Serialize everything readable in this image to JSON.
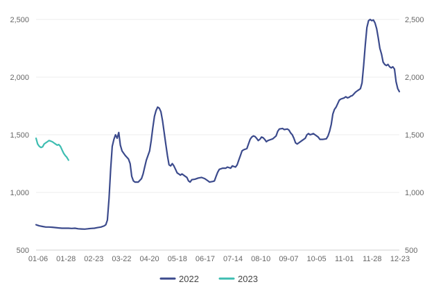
{
  "chart_data": {
    "type": "line",
    "title": "",
    "xlabel": "",
    "ylabel": "",
    "x_tick_labels": [
      "01-06",
      "01-28",
      "02-23",
      "03-22",
      "04-20",
      "05-18",
      "06-17",
      "07-14",
      "08-10",
      "09-07",
      "10-05",
      "11-01",
      "11-28",
      "12-23"
    ],
    "y_ticks": [
      500,
      1000,
      1500,
      2000,
      2500
    ],
    "y_tick_labels": [
      "500",
      "1,000",
      "1,500",
      "2,000",
      "2,500"
    ],
    "ylim": [
      500,
      2500
    ],
    "grid": true,
    "legend_position": "bottom",
    "series": [
      {
        "name": "2022",
        "color": "#3b4a8c",
        "points": [
          [
            0,
            720
          ],
          [
            1,
            715
          ],
          [
            2,
            710
          ],
          [
            4,
            705
          ],
          [
            6,
            700
          ],
          [
            8,
            700
          ],
          [
            10,
            698
          ],
          [
            12,
            695
          ],
          [
            14,
            692
          ],
          [
            16,
            690
          ],
          [
            18,
            690
          ],
          [
            20,
            690
          ],
          [
            22,
            688
          ],
          [
            24,
            690
          ],
          [
            26,
            685
          ],
          [
            28,
            683
          ],
          [
            30,
            682
          ],
          [
            32,
            685
          ],
          [
            34,
            688
          ],
          [
            36,
            690
          ],
          [
            38,
            695
          ],
          [
            40,
            700
          ],
          [
            42,
            710
          ],
          [
            43,
            720
          ],
          [
            44,
            760
          ],
          [
            45,
            950
          ],
          [
            46,
            1200
          ],
          [
            47,
            1400
          ],
          [
            48,
            1460
          ],
          [
            49,
            1500
          ],
          [
            50,
            1470
          ],
          [
            51,
            1520
          ],
          [
            52,
            1410
          ],
          [
            53,
            1360
          ],
          [
            55,
            1320
          ],
          [
            57,
            1290
          ],
          [
            58,
            1250
          ],
          [
            59,
            1140
          ],
          [
            60,
            1100
          ],
          [
            61,
            1090
          ],
          [
            63,
            1090
          ],
          [
            65,
            1120
          ],
          [
            66,
            1160
          ],
          [
            67,
            1220
          ],
          [
            68,
            1280
          ],
          [
            70,
            1360
          ],
          [
            71,
            1450
          ],
          [
            72,
            1560
          ],
          [
            73,
            1660
          ],
          [
            74,
            1710
          ],
          [
            75,
            1740
          ],
          [
            76,
            1730
          ],
          [
            77,
            1700
          ],
          [
            78,
            1620
          ],
          [
            79,
            1520
          ],
          [
            80,
            1420
          ],
          [
            81,
            1320
          ],
          [
            82,
            1240
          ],
          [
            83,
            1230
          ],
          [
            84,
            1250
          ],
          [
            85,
            1230
          ],
          [
            86,
            1200
          ],
          [
            87,
            1170
          ],
          [
            88,
            1160
          ],
          [
            89,
            1150
          ],
          [
            90,
            1160
          ],
          [
            92,
            1140
          ],
          [
            93,
            1130
          ],
          [
            94,
            1100
          ],
          [
            95,
            1090
          ],
          [
            96,
            1110
          ],
          [
            98,
            1115
          ],
          [
            100,
            1125
          ],
          [
            102,
            1130
          ],
          [
            104,
            1120
          ],
          [
            106,
            1100
          ],
          [
            107,
            1090
          ],
          [
            109,
            1095
          ],
          [
            110,
            1100
          ],
          [
            111,
            1140
          ],
          [
            112,
            1175
          ],
          [
            113,
            1200
          ],
          [
            115,
            1210
          ],
          [
            117,
            1210
          ],
          [
            118,
            1220
          ],
          [
            120,
            1210
          ],
          [
            121,
            1230
          ],
          [
            123,
            1220
          ],
          [
            124,
            1240
          ],
          [
            125,
            1280
          ],
          [
            126,
            1320
          ],
          [
            127,
            1360
          ],
          [
            128,
            1370
          ],
          [
            130,
            1380
          ],
          [
            131,
            1420
          ],
          [
            132,
            1460
          ],
          [
            133,
            1480
          ],
          [
            134,
            1490
          ],
          [
            135,
            1485
          ],
          [
            136,
            1470
          ],
          [
            137,
            1450
          ],
          [
            138,
            1460
          ],
          [
            139,
            1480
          ],
          [
            140,
            1475
          ],
          [
            141,
            1460
          ],
          [
            142,
            1440
          ],
          [
            143,
            1450
          ],
          [
            145,
            1460
          ],
          [
            146,
            1465
          ],
          [
            148,
            1490
          ],
          [
            149,
            1530
          ],
          [
            150,
            1550
          ],
          [
            152,
            1555
          ],
          [
            153,
            1545
          ],
          [
            155,
            1550
          ],
          [
            156,
            1540
          ],
          [
            157,
            1515
          ],
          [
            158,
            1500
          ],
          [
            159,
            1470
          ],
          [
            160,
            1430
          ],
          [
            161,
            1420
          ],
          [
            162,
            1430
          ],
          [
            164,
            1450
          ],
          [
            166,
            1470
          ],
          [
            167,
            1500
          ],
          [
            168,
            1510
          ],
          [
            169,
            1500
          ],
          [
            170,
            1505
          ],
          [
            171,
            1510
          ],
          [
            172,
            1500
          ],
          [
            174,
            1480
          ],
          [
            175,
            1460
          ],
          [
            177,
            1460
          ],
          [
            179,
            1465
          ],
          [
            180,
            1490
          ],
          [
            181,
            1530
          ],
          [
            182,
            1590
          ],
          [
            183,
            1680
          ],
          [
            184,
            1720
          ],
          [
            185,
            1740
          ],
          [
            186,
            1770
          ],
          [
            187,
            1800
          ],
          [
            188,
            1810
          ],
          [
            190,
            1820
          ],
          [
            191,
            1830
          ],
          [
            192,
            1820
          ],
          [
            193,
            1825
          ],
          [
            194,
            1835
          ],
          [
            195,
            1840
          ],
          [
            197,
            1870
          ],
          [
            198,
            1880
          ],
          [
            199,
            1890
          ],
          [
            200,
            1900
          ],
          [
            201,
            1950
          ],
          [
            202,
            2100
          ],
          [
            203,
            2280
          ],
          [
            204,
            2430
          ],
          [
            205,
            2490
          ],
          [
            206,
            2500
          ],
          [
            207,
            2490
          ],
          [
            208,
            2495
          ],
          [
            209,
            2470
          ],
          [
            210,
            2420
          ],
          [
            211,
            2340
          ],
          [
            212,
            2250
          ],
          [
            213,
            2200
          ],
          [
            214,
            2130
          ],
          [
            215,
            2110
          ],
          [
            216,
            2100
          ],
          [
            217,
            2110
          ],
          [
            218,
            2090
          ],
          [
            219,
            2080
          ],
          [
            220,
            2090
          ],
          [
            221,
            2070
          ],
          [
            222,
            1960
          ],
          [
            223,
            1900
          ],
          [
            224,
            1875
          ]
        ]
      },
      {
        "name": "2023",
        "color": "#3dbdb1",
        "points": [
          [
            0,
            1470
          ],
          [
            1,
            1420
          ],
          [
            2,
            1400
          ],
          [
            3,
            1390
          ],
          [
            4,
            1395
          ],
          [
            5,
            1420
          ],
          [
            6,
            1430
          ],
          [
            7,
            1440
          ],
          [
            8,
            1450
          ],
          [
            9,
            1445
          ],
          [
            10,
            1440
          ],
          [
            11,
            1430
          ],
          [
            12,
            1420
          ],
          [
            13,
            1410
          ],
          [
            14,
            1415
          ],
          [
            15,
            1400
          ],
          [
            16,
            1370
          ],
          [
            17,
            1340
          ],
          [
            18,
            1320
          ],
          [
            19,
            1305
          ],
          [
            20,
            1280
          ]
        ]
      }
    ]
  }
}
